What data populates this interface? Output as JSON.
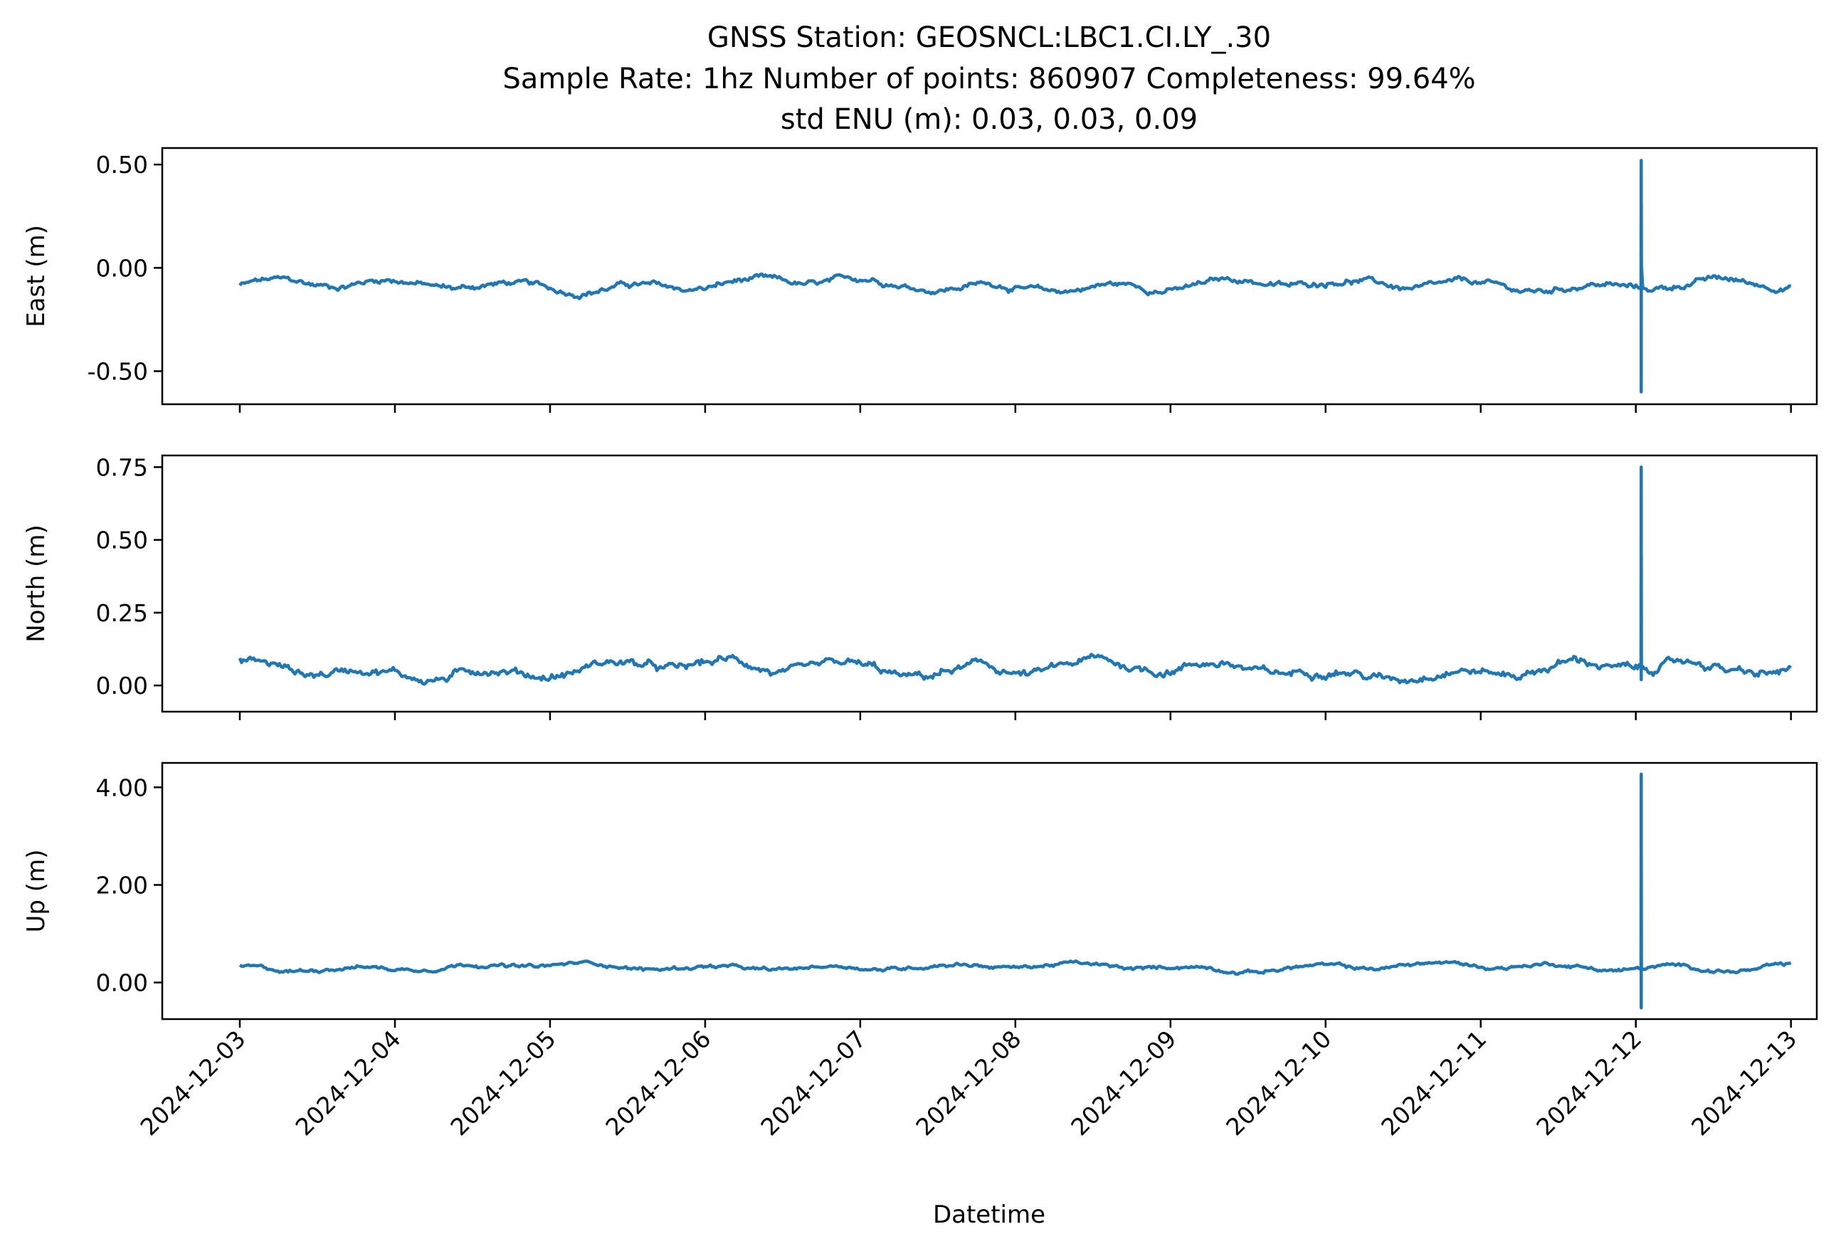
{
  "chart_data": {
    "type": "line",
    "title_lines": [
      "GNSS Station: GEOSNCL:LBC1.CI.LY_.30",
      "Sample Rate: 1hz   Number of points: 860907    Completeness:  99.64%",
      "std ENU (m):  0.03, 0.03, 0.09"
    ],
    "xlabel": "Datetime",
    "x_ticks": [
      "2024-12-03",
      "2024-12-04",
      "2024-12-05",
      "2024-12-06",
      "2024-12-07",
      "2024-12-08",
      "2024-12-09",
      "2024-12-10",
      "2024-12-11",
      "2024-12-12",
      "2024-12-13"
    ],
    "x_range": [
      "2024-12-02T12:00",
      "2024-12-13T04:00"
    ],
    "line_color": "#1f77b4",
    "panels": [
      {
        "ylabel": "East (m)",
        "ylim": [
          -0.66,
          0.58
        ],
        "y_ticks": [
          0.5,
          0.0,
          -0.5
        ],
        "y_tick_labels": [
          "0.50",
          "0.00",
          "-0.50"
        ],
        "baseline": -0.085,
        "wiggle": 0.03,
        "spike": {
          "date": "2024-12-12T00:50",
          "max": 0.52,
          "min": -0.6,
          "after": 0.01
        }
      },
      {
        "ylabel": "North (m)",
        "ylim": [
          -0.09,
          0.79
        ],
        "y_ticks": [
          0.75,
          0.5,
          0.25,
          0.0
        ],
        "y_tick_labels": [
          "0.75",
          "0.50",
          "0.25",
          "0.00"
        ],
        "baseline": 0.055,
        "wiggle": 0.03,
        "spike": {
          "date": "2024-12-12T00:50",
          "max": 0.75,
          "min": 0.02,
          "after": 0.06
        }
      },
      {
        "ylabel": "Up (m)",
        "ylim": [
          -0.75,
          4.5
        ],
        "y_ticks": [
          4.0,
          2.0,
          0.0
        ],
        "y_tick_labels": [
          "4.00",
          "2.00",
          "0.00"
        ],
        "baseline": 0.32,
        "wiggle": 0.08,
        "spike": {
          "date": "2024-12-12T00:50",
          "max": 4.27,
          "min": -0.52,
          "after": 0.25
        }
      }
    ],
    "grid": false,
    "legend": "none"
  }
}
